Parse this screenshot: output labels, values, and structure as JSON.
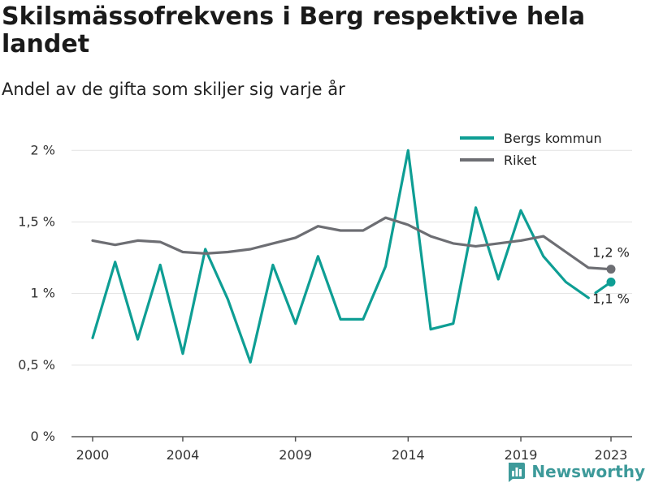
{
  "title": "Skilsmässofrekvens i Berg respektive hela landet",
  "subtitle": "Andel av de gifta som skiljer sig varje år",
  "brand": "Newsworthy",
  "colors": {
    "berg": "#0e9e94",
    "riket": "#6d6e73",
    "grid": "#e2e2e2",
    "axis": "#555555"
  },
  "chart_data": {
    "type": "line",
    "title": "Skilsmässofrekvens i Berg respektive hela landet",
    "subtitle": "Andel av de gifta som skiljer sig varje år",
    "x": [
      2000,
      2001,
      2002,
      2003,
      2004,
      2005,
      2006,
      2007,
      2008,
      2009,
      2010,
      2011,
      2012,
      2013,
      2014,
      2015,
      2016,
      2017,
      2018,
      2019,
      2020,
      2021,
      2022,
      2023
    ],
    "xticks": [
      2000,
      2004,
      2009,
      2014,
      2019,
      2023
    ],
    "ylim": [
      0,
      2.2
    ],
    "yticks": [
      0,
      0.5,
      1,
      1.5,
      2
    ],
    "ytick_labels": [
      "0 %",
      "0,5 %",
      "1 %",
      "1,5 %",
      "2 %"
    ],
    "grid": true,
    "legend_position": "top-right",
    "series": [
      {
        "name": "Bergs kommun",
        "color": "#0e9e94",
        "values": [
          0.69,
          1.22,
          0.68,
          1.2,
          0.58,
          1.31,
          0.96,
          0.52,
          1.2,
          0.79,
          1.26,
          0.82,
          0.82,
          1.19,
          2.0,
          0.75,
          0.79,
          1.6,
          1.1,
          1.58,
          1.26,
          1.08,
          0.97,
          1.08
        ],
        "end_label": "1,1 %",
        "end_gap": true
      },
      {
        "name": "Riket",
        "color": "#6d6e73",
        "values": [
          1.37,
          1.34,
          1.37,
          1.36,
          1.29,
          1.28,
          1.29,
          1.31,
          1.35,
          1.39,
          1.47,
          1.44,
          1.44,
          1.53,
          1.48,
          1.4,
          1.35,
          1.33,
          1.35,
          1.37,
          1.4,
          1.29,
          1.18,
          1.17
        ],
        "end_label": "1,2 %",
        "end_gap": false
      }
    ]
  }
}
